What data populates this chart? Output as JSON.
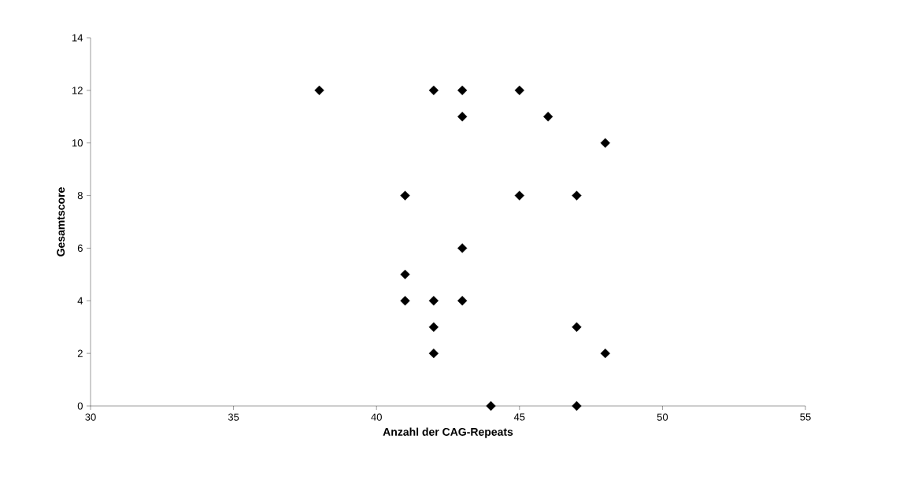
{
  "chart_data": {
    "type": "scatter",
    "xlabel": "Anzahl der CAG-Repeats",
    "ylabel": "Gesamtscore",
    "x": [
      38,
      42,
      43,
      45,
      43,
      46,
      48,
      41,
      45,
      47,
      43,
      41,
      41,
      42,
      43,
      42,
      47,
      42,
      48,
      44,
      47
    ],
    "values": [
      12,
      12,
      12,
      12,
      11,
      11,
      10,
      8,
      8,
      8,
      6,
      5,
      4,
      4,
      4,
      3,
      3,
      2,
      2,
      0,
      0
    ],
    "color": "#000000",
    "marker": "diamond",
    "grid": false,
    "xlim": [
      30,
      55
    ],
    "xticks": [
      30,
      35,
      40,
      45,
      50,
      55
    ],
    "ylim": [
      0,
      14
    ],
    "yticks": [
      0,
      2,
      4,
      6,
      8,
      10,
      12,
      14
    ]
  }
}
